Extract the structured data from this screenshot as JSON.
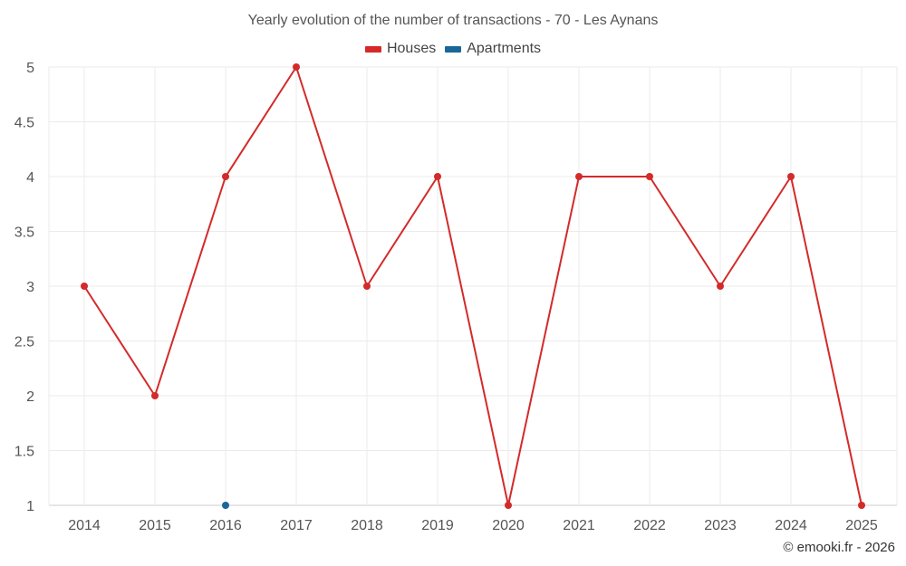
{
  "chart_data": {
    "type": "line",
    "title": "Yearly evolution of the number of transactions - 70 - Les Aynans",
    "categories": [
      "2014",
      "2015",
      "2016",
      "2017",
      "2018",
      "2019",
      "2020",
      "2021",
      "2022",
      "2023",
      "2024",
      "2025"
    ],
    "series": [
      {
        "name": "Houses",
        "color": "#d42a2a",
        "values": [
          3,
          2,
          4,
          5,
          3,
          4,
          1,
          4,
          4,
          3,
          4,
          1
        ]
      },
      {
        "name": "Apartments",
        "color": "#1a6699",
        "values": [
          null,
          null,
          1,
          null,
          null,
          null,
          null,
          null,
          null,
          null,
          null,
          null
        ]
      }
    ],
    "yticks": [
      "1",
      "1.5",
      "2",
      "2.5",
      "3",
      "3.5",
      "4",
      "4.5",
      "5"
    ],
    "ylim": [
      1,
      5
    ],
    "xlabel": "",
    "ylabel": "",
    "grid": true,
    "legend": "top-center"
  },
  "credit": "© emooki.fr - 2026"
}
